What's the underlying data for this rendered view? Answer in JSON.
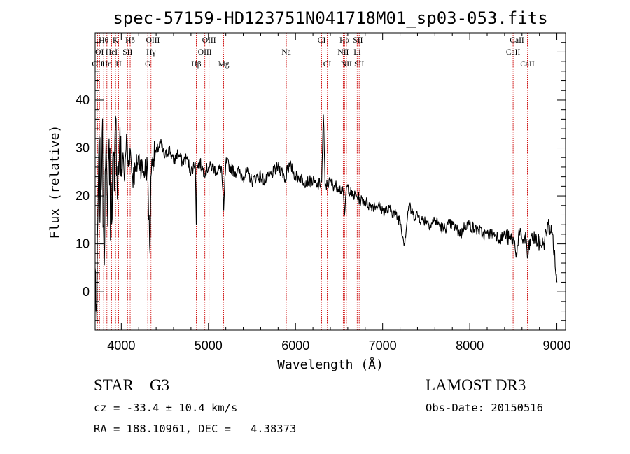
{
  "chart_data": {
    "type": "line",
    "title": "spec-57159-HD123751N041718M01_sp03-053.fits",
    "xlabel": "Wavelength (Å)",
    "ylabel": "Flux (relative)",
    "xlim": [
      3700,
      9100
    ],
    "ylim": [
      -8,
      54
    ],
    "xticks": [
      4000,
      5000,
      6000,
      7000,
      8000,
      9000
    ],
    "yticks": [
      0,
      10,
      20,
      30,
      40
    ],
    "series": [
      {
        "name": "spectrum",
        "x": [
          3700,
          3720,
          3740,
          3760,
          3780,
          3800,
          3820,
          3840,
          3860,
          3880,
          3900,
          3920,
          3940,
          3960,
          3980,
          4000,
          4020,
          4040,
          4060,
          4080,
          4100,
          4130,
          4160,
          4200,
          4250,
          4300,
          4330,
          4340,
          4360,
          4400,
          4450,
          4500,
          4550,
          4600,
          4650,
          4700,
          4750,
          4800,
          4850,
          4861,
          4870,
          4900,
          4950,
          5000,
          5050,
          5100,
          5150,
          5175,
          5200,
          5250,
          5300,
          5350,
          5400,
          5450,
          5500,
          5550,
          5600,
          5650,
          5700,
          5750,
          5800,
          5850,
          5890,
          5900,
          5950,
          6000,
          6050,
          6100,
          6150,
          6200,
          6250,
          6300,
          6320,
          6340,
          6400,
          6450,
          6500,
          6520,
          6540,
          6563,
          6580,
          6600,
          6650,
          6700,
          6750,
          6800,
          6850,
          6900,
          6950,
          7000,
          7050,
          7100,
          7150,
          7200,
          7250,
          7300,
          7350,
          7400,
          7450,
          7500,
          7550,
          7600,
          7650,
          7700,
          7750,
          7800,
          7850,
          7900,
          7950,
          8000,
          8050,
          8100,
          8150,
          8200,
          8250,
          8300,
          8350,
          8400,
          8450,
          8500,
          8542,
          8560,
          8600,
          8650,
          8662,
          8700,
          8750,
          8800,
          8850,
          8900,
          8950,
          9000
        ],
        "values": [
          5,
          -6,
          28,
          20,
          33,
          10,
          26,
          18,
          32,
          14,
          27,
          21,
          36,
          22,
          31,
          24,
          29,
          23,
          33,
          26,
          30,
          24,
          25,
          28,
          25,
          26,
          8,
          24,
          28,
          29,
          31,
          28,
          30,
          27,
          29,
          27,
          28,
          25,
          27,
          14,
          26,
          27,
          25,
          26,
          26,
          25,
          26,
          17,
          27,
          26,
          25,
          25,
          24,
          25,
          23,
          24,
          24,
          23,
          24,
          25,
          26,
          25,
          23,
          26,
          26,
          24,
          24,
          23,
          23,
          23,
          22,
          23,
          37,
          22,
          23,
          22,
          22,
          21,
          22,
          16,
          21,
          22,
          20,
          20,
          19,
          19,
          18,
          18,
          18,
          17,
          17,
          17,
          16,
          15,
          10,
          18,
          16,
          16,
          15,
          15,
          14,
          15,
          14,
          13,
          14,
          14,
          13,
          12,
          14,
          14,
          13,
          13,
          12,
          12,
          12,
          12,
          11,
          12,
          11,
          11,
          8,
          12,
          11,
          11,
          7,
          11,
          11,
          10,
          10,
          14,
          12,
          2
        ]
      }
    ],
    "spectral_lines": [
      {
        "label": "OII",
        "wavelength": 3727,
        "row": 3
      },
      {
        "label": "Hθ",
        "wavelength": 3798,
        "row": 1
      },
      {
        "label": "OI",
        "wavelength": 3750,
        "row": 2
      },
      {
        "label": "Hη",
        "wavelength": 3835,
        "row": 3
      },
      {
        "label": "K",
        "wavelength": 3934,
        "row": 1
      },
      {
        "label": "HeI",
        "wavelength": 3889,
        "row": 2
      },
      {
        "label": "H",
        "wavelength": 3969,
        "row": 3
      },
      {
        "label": "SII",
        "wavelength": 4072,
        "row": 2
      },
      {
        "label": "Hδ",
        "wavelength": 4102,
        "row": 1
      },
      {
        "label": "OIII",
        "wavelength": 4363,
        "row": 1
      },
      {
        "label": "Hγ",
        "wavelength": 4341,
        "row": 2
      },
      {
        "label": "G",
        "wavelength": 4304,
        "row": 3
      },
      {
        "label": "Hβ",
        "wavelength": 4861,
        "row": 3
      },
      {
        "label": "OIII",
        "wavelength": 5007,
        "row": 1
      },
      {
        "label": "OIII",
        "wavelength": 4959,
        "row": 2
      },
      {
        "label": "Mg",
        "wavelength": 5175,
        "row": 3
      },
      {
        "label": "Na",
        "wavelength": 5894,
        "row": 2
      },
      {
        "label": "CI",
        "wavelength": 6300,
        "row": 1
      },
      {
        "label": "CI",
        "wavelength": 6364,
        "row": 3
      },
      {
        "label": "Hα",
        "wavelength": 6563,
        "row": 1
      },
      {
        "label": "NII",
        "wavelength": 6548,
        "row": 2
      },
      {
        "label": "NII",
        "wavelength": 6584,
        "row": 3
      },
      {
        "label": "SII",
        "wavelength": 6717,
        "row": 1
      },
      {
        "label": "Li",
        "wavelength": 6708,
        "row": 2
      },
      {
        "label": "SII",
        "wavelength": 6731,
        "row": 3
      },
      {
        "label": "CaII",
        "wavelength": 8542,
        "row": 1
      },
      {
        "label": "CaII",
        "wavelength": 8498,
        "row": 2
      },
      {
        "label": "CaII",
        "wavelength": 8662,
        "row": 3
      }
    ]
  },
  "info": {
    "class_text": "STAR    G3",
    "survey": "LAMOST DR3",
    "cz": "cz = -33.4 ± 10.4 km/s",
    "obs_date": "Obs-Date: 20150516",
    "coords": "RA = 188.10961, DEC =   4.38373"
  },
  "colors": {
    "spectrum": "#000000",
    "lines": "#cc0000",
    "axes": "#000000",
    "background": "#ffffff"
  }
}
